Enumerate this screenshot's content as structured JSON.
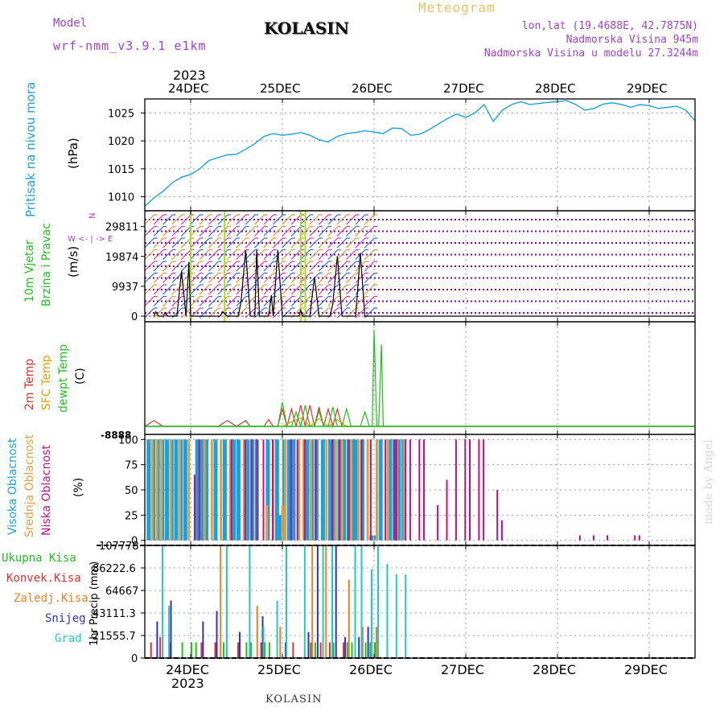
{
  "header": {
    "model_label": "Model",
    "model_name": "wrf-nmm_v3.9.1 e1km",
    "station": "KOLASIN",
    "meteogram_label": "Meteogram",
    "lonlat": "lon,lat (19.4688E, 42.7875N)",
    "elevation": "Nadmorska Visina 945m",
    "model_elevation": "Nadmorska Visina u modelu 27.3244m"
  },
  "footer_station": "KOLASIN",
  "watermark": "made by Angel",
  "colors": {
    "pressure": "#1aa0e0",
    "wind_speed": "#000000",
    "wind_barbs_a": "#e09030",
    "wind_barbs_b": "#d030a0",
    "wind_dots": "#8000c0",
    "temp2m": "#e03030",
    "temp_sfc": "#e0a000",
    "dewpoint": "#20c020",
    "cloud_high": "#1aa0e0",
    "cloud_mid": "#e0a040",
    "cloud_low": "#c01080",
    "precip_total": "#20c020",
    "precip_conv": "#e03030",
    "precip_frz": "#f08020",
    "precip_snow": "#3030d0",
    "precip_grad": "#20c8c8"
  },
  "top_axis": {
    "year": "2023",
    "days": [
      "24DEC",
      "25DEC",
      "26DEC",
      "27DEC",
      "28DEC",
      "29DEC"
    ]
  },
  "bottom_axis": {
    "year": "2023",
    "days": [
      "24DEC",
      "25DEC",
      "26DEC",
      "27DEC",
      "28DEC",
      "29DEC"
    ]
  },
  "chart_data": [
    {
      "type": "line",
      "panel": "pressure",
      "ylabel_left": "Pritisak na nivou mora",
      "unit": "(hPa)",
      "yticks": [
        1010,
        1015,
        1020,
        1025
      ],
      "ylim": [
        1007.5,
        1027.5
      ],
      "x_days": [
        23.5,
        23.6,
        23.7,
        23.8,
        23.9,
        24.0,
        24.1,
        24.2,
        24.3,
        24.4,
        24.5,
        24.6,
        24.7,
        24.8,
        24.9,
        25.0,
        25.1,
        25.2,
        25.3,
        25.4,
        25.5,
        25.6,
        25.7,
        25.8,
        25.9,
        26.0,
        26.1,
        26.2,
        26.3,
        26.4,
        26.5,
        26.6,
        26.7,
        26.8,
        26.9,
        27.0,
        27.1,
        27.2,
        27.3,
        27.4,
        27.5,
        27.6,
        27.7,
        27.8,
        27.9,
        28.0,
        28.1,
        28.2,
        28.3,
        28.4,
        28.5,
        28.6,
        28.7,
        28.8,
        28.9,
        29.0,
        29.1,
        29.2,
        29.3,
        29.4,
        29.5
      ],
      "values": [
        1008.3,
        1009.8,
        1011.0,
        1012.5,
        1013.5,
        1014.0,
        1015.0,
        1016.5,
        1017.0,
        1017.5,
        1017.6,
        1018.5,
        1019.5,
        1020.8,
        1021.3,
        1021.0,
        1021.2,
        1021.5,
        1021.0,
        1020.2,
        1019.8,
        1020.8,
        1021.3,
        1021.5,
        1021.8,
        1021.6,
        1021.3,
        1022.3,
        1022.2,
        1021.0,
        1021.2,
        1022.0,
        1023.0,
        1024.0,
        1024.8,
        1024.2,
        1025.0,
        1026.5,
        1023.5,
        1025.5,
        1026.5,
        1027.0,
        1026.5,
        1026.7,
        1026.9,
        1027.0,
        1027.2,
        1026.5,
        1025.5,
        1025.8,
        1026.6,
        1026.8,
        1026.5,
        1026.0,
        1026.5,
        1026.3,
        1025.8,
        1026.0,
        1026.2,
        1025.5,
        1023.6
      ]
    },
    {
      "type": "line",
      "panel": "wind",
      "ylabel_left": "10m Vjetar Brzina i Pravac",
      "unit": "(m/s)",
      "compass": "N <- | -> S, W <- | -> E",
      "yticks": [
        0,
        9937,
        19874,
        29811
      ],
      "ylim": [
        -800,
        34000
      ],
      "x_days": [
        23.6,
        23.62,
        23.65,
        23.7,
        23.72,
        23.75,
        23.8,
        23.85,
        23.9,
        23.95,
        23.98,
        24.0,
        24.05,
        24.1,
        24.2,
        24.3,
        24.32,
        24.35,
        24.4,
        24.5,
        24.52,
        24.55,
        24.6,
        24.65,
        24.7,
        24.72,
        24.75,
        24.8,
        24.85,
        24.88,
        24.9,
        24.95,
        25.0,
        25.05,
        25.1,
        25.15,
        25.18,
        25.2,
        25.22,
        25.25,
        25.3,
        25.35,
        25.4,
        25.45,
        25.5,
        25.52,
        25.55,
        25.6,
        25.65,
        25.7,
        25.72,
        25.75,
        25.8,
        25.85,
        25.9,
        25.95,
        26.0,
        26.1,
        27.0,
        28.0,
        29.0,
        29.5
      ],
      "values": [
        0,
        1500,
        0,
        0,
        1200,
        0,
        0,
        0,
        15000,
        0,
        18000,
        0,
        0,
        0,
        0,
        0,
        0,
        1500,
        0,
        0,
        0,
        5000,
        22000,
        0,
        0,
        22000,
        0,
        0,
        0,
        7000,
        0,
        22000,
        0,
        0,
        0,
        0,
        0,
        2000,
        0,
        0,
        0,
        13000,
        0,
        0,
        0,
        0,
        4000,
        20000,
        0,
        0,
        0,
        0,
        0,
        21000,
        0,
        0,
        0,
        0,
        0,
        0,
        0,
        0
      ],
      "barb_rows": 9,
      "barb_x_extent": [
        23.55,
        26.0
      ]
    },
    {
      "type": "line",
      "panel": "temperature",
      "ylabel_left": [
        "2m Temp",
        "SFC Temp",
        "dewpt Temp"
      ],
      "unit": "(C)",
      "series": [
        {
          "name": "2m Temp",
          "x": [
            23.5,
            23.6,
            23.7,
            23.8,
            24.0,
            24.3,
            24.4,
            24.5,
            24.6,
            24.65,
            24.7,
            24.8,
            24.85,
            24.9,
            24.95,
            25.0,
            25.05,
            25.1,
            25.15,
            25.2,
            25.25,
            25.3,
            25.35,
            25.4,
            25.45,
            25.5,
            25.55,
            25.6,
            25.65,
            25.7,
            25.75,
            25.8,
            25.85,
            25.9,
            26.0,
            26.1,
            26.5,
            27,
            28,
            29,
            29.5
          ],
          "values": [
            0.0,
            0.6,
            0.0,
            0.0,
            0.0,
            0.0,
            0.6,
            0.0,
            0.6,
            0.0,
            0.0,
            0.0,
            0.7,
            0.0,
            0.0,
            1.8,
            0.0,
            1.8,
            0.0,
            2.2,
            0.0,
            2.2,
            0.0,
            2.0,
            0.0,
            1.8,
            0.0,
            1.8,
            0.0,
            0.0,
            0.0,
            0.0,
            0.0,
            0.0,
            0.0,
            0.0,
            0.0,
            0.0,
            0.0,
            0.0,
            0.0
          ]
        },
        {
          "name": "SFC Temp",
          "x": [
            23.5,
            24.0,
            25.0,
            25.2,
            25.3,
            25.4,
            25.5,
            25.6,
            25.7,
            26.0,
            29.5
          ],
          "values": [
            0,
            0,
            0,
            0.9,
            0,
            0.8,
            0,
            0.7,
            0,
            0,
            0
          ]
        },
        {
          "name": "dewpt Temp",
          "x": [
            23.5,
            24.0,
            24.9,
            24.95,
            25.0,
            25.05,
            25.1,
            25.15,
            25.2,
            25.25,
            25.3,
            25.35,
            25.4,
            25.45,
            25.5,
            25.55,
            25.6,
            25.65,
            25.7,
            25.75,
            25.8,
            25.85,
            25.9,
            25.95,
            25.98,
            26.0,
            26.03,
            26.05,
            26.08,
            26.1,
            26.12,
            26.15,
            26.2,
            27,
            28,
            29,
            29.5
          ],
          "values": [
            0.0,
            0.0,
            0.0,
            0.0,
            2.5,
            0.0,
            0.0,
            1.5,
            0.0,
            2.2,
            0.0,
            0.0,
            1.6,
            0.0,
            0.0,
            2.0,
            0.0,
            0.0,
            1.8,
            0.0,
            0.0,
            0.0,
            1.5,
            0.0,
            0.0,
            10.0,
            0.0,
            0.0,
            8.5,
            0.0,
            0.0,
            0.0,
            0.0,
            0.0,
            0.0,
            0.0,
            0.0
          ]
        }
      ],
      "ylim": [
        -0.5,
        10.5
      ]
    },
    {
      "type": "bar",
      "panel": "clouds",
      "ylabel_left": [
        "Visoka Oblacnost",
        "Srednja Oblacnost",
        "Niska Oblacnost"
      ],
      "unit": "(%)",
      "yticks": [
        0,
        25,
        50,
        75,
        100
      ],
      "ylim": [
        -5,
        105
      ],
      "series": [
        {
          "name": "Visoka Oblacnost",
          "x": [
            23.52,
            23.57,
            23.62,
            23.67,
            23.72,
            23.77,
            23.82,
            23.87,
            23.92,
            24.05,
            24.1,
            24.15,
            24.25,
            24.35,
            24.45,
            24.5,
            24.6,
            24.65,
            24.7,
            24.82,
            24.92,
            24.95,
            25.0,
            25.05,
            25.1,
            25.25,
            25.3,
            25.35,
            25.42,
            25.5,
            25.55,
            25.6,
            25.65,
            25.7,
            25.75,
            25.78,
            25.85,
            25.95,
            26.0,
            26.05,
            26.15,
            26.2,
            26.25,
            26.3
          ],
          "values": [
            100,
            100,
            100,
            100,
            100,
            100,
            100,
            100,
            100,
            100,
            100,
            100,
            100,
            100,
            100,
            100,
            100,
            100,
            100,
            100,
            100,
            25,
            100,
            100,
            100,
            100,
            100,
            100,
            100,
            100,
            100,
            100,
            100,
            100,
            100,
            100,
            100,
            5,
            5,
            100,
            100,
            100,
            100,
            100
          ]
        },
        {
          "name": "Srednja Oblacnost",
          "x": [
            23.55,
            23.6,
            23.65,
            23.75,
            23.85,
            23.95,
            24.12,
            24.2,
            24.3,
            24.4,
            24.55,
            24.8,
            24.87,
            24.97,
            25.0,
            25.15,
            25.2,
            25.28,
            25.45,
            25.55,
            25.62,
            25.72,
            25.8,
            25.9,
            26.0,
            26.12,
            26.22,
            26.3
          ],
          "values": [
            100,
            100,
            100,
            100,
            100,
            100,
            100,
            100,
            100,
            100,
            100,
            35,
            100,
            35,
            100,
            100,
            100,
            100,
            100,
            100,
            100,
            100,
            100,
            100,
            100,
            100,
            100,
            100
          ]
        },
        {
          "name": "Niska Oblacnost",
          "x": [
            24.0,
            24.05,
            24.4,
            24.55,
            24.62,
            24.68,
            24.75,
            24.85,
            25.05,
            25.12,
            25.2,
            25.32,
            25.5,
            25.58,
            25.68,
            25.82,
            25.92,
            26.08,
            26.18,
            26.2,
            26.3,
            26.35,
            26.45,
            26.5,
            26.65,
            26.75,
            26.85,
            26.95,
            27.0,
            27.1,
            27.15,
            27.3,
            27.35,
            28.2,
            28.35,
            28.5,
            28.8,
            28.85
          ],
          "values": [
            65,
            100,
            100,
            100,
            100,
            100,
            100,
            100,
            100,
            100,
            100,
            100,
            100,
            100,
            100,
            100,
            100,
            100,
            100,
            100,
            100,
            100,
            100,
            100,
            35,
            60,
            100,
            100,
            100,
            100,
            100,
            50,
            20,
            5,
            5,
            5,
            5,
            5
          ]
        }
      ]
    },
    {
      "type": "bar",
      "panel": "precipitation",
      "ylabel_left": [
        "Ukupna Kisa",
        "Konvek.Kisa",
        "Zaledj.Kisa",
        "Snijeg",
        "Grad"
      ],
      "unit": "1hr Precip (mm)",
      "yticks": [
        0,
        21555.7,
        43111.3,
        64667,
        86222.6,
        107778
      ],
      "ylim": [
        0,
        107778
      ],
      "series": [
        {
          "name": "Ukupna Kisa",
          "x": [
            23.9,
            24.0,
            24.05,
            24.35,
            24.6,
            24.65,
            24.8,
            24.85,
            25.3,
            25.35,
            25.55,
            25.7,
            25.75,
            25.9,
            25.95,
            26.0
          ],
          "values": [
            15000,
            15000,
            15000,
            15000,
            15000,
            15000,
            15000,
            15000,
            15000,
            15000,
            15000,
            15000,
            15000,
            15000,
            15000,
            15000
          ]
        },
        {
          "name": "Konvek.Kisa",
          "x": [
            23.55,
            23.65,
            23.75,
            24.1,
            24.25,
            24.5,
            24.75,
            25.1,
            25.3,
            25.4,
            25.5,
            25.65
          ],
          "values": [
            15000,
            20000,
            15000,
            15000,
            15000,
            15000,
            15000,
            15000,
            15000,
            15000,
            15000,
            15000
          ]
        },
        {
          "name": "Zaledj.Kisa",
          "x": [
            24.3,
            24.7,
            24.95,
            25.3,
            25.45,
            25.7,
            25.85,
            26.0
          ],
          "values": [
            107000,
            50000,
            30000,
            107000,
            107000,
            75000,
            30000,
            30000
          ]
        },
        {
          "name": "Snijeg",
          "x": [
            23.6,
            23.75,
            24.1,
            24.25,
            24.5,
            24.75,
            25.0,
            25.25,
            25.35,
            25.55,
            25.65,
            25.8,
            25.9
          ],
          "values": [
            35000,
            55000,
            35000,
            45000,
            25000,
            40000,
            15000,
            25000,
            107000,
            107000,
            20000,
            20000,
            30000
          ]
        },
        {
          "name": "Grad",
          "x": [
            23.65,
            23.72,
            24.35,
            24.6,
            24.75,
            24.9,
            25.0,
            25.2,
            25.4,
            25.5,
            25.75,
            25.82,
            25.93,
            26.0,
            26.1,
            26.2,
            26.3
          ],
          "values": [
            107000,
            50000,
            107000,
            107000,
            30000,
            55000,
            107000,
            107000,
            107000,
            107000,
            107000,
            107000,
            85000,
            107000,
            90000,
            80000,
            80000
          ]
        }
      ]
    }
  ]
}
